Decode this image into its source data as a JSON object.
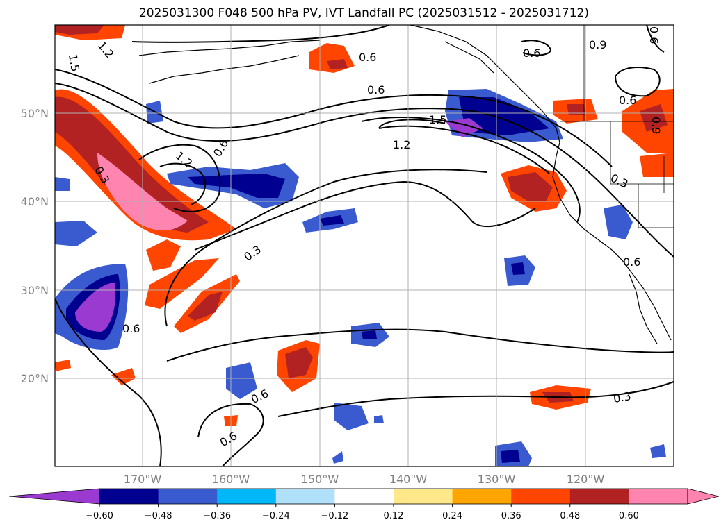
{
  "title": "2025031300 F048 500 hPa PV, IVT Landfall PC (2025031512 - 2025031712)",
  "lat_labels": [
    "50°N",
    "40°N",
    "30°N",
    "20°N"
  ],
  "lon_labels": [
    "170°W",
    "160°W",
    "150°W",
    "140°W",
    "130°W",
    "120°W"
  ],
  "contour_labels": {
    "a": "1.5",
    "b": "1.2",
    "c": "0.6",
    "d": "0.6",
    "e": "0.6",
    "f": "0.9",
    "g": "0.6",
    "h": "0.6",
    "i": "1.2",
    "j": "1.5",
    "k": "0.9",
    "l": "1.2",
    "m": "0.6",
    "n": "0.3",
    "o": "0.3",
    "p": "0.6",
    "q": "0.3",
    "r": "0.6",
    "s": "0.6",
    "t": "0.6",
    "u": "0.3"
  },
  "colorbar": {
    "colors": [
      "#9a3ad0",
      "#000090",
      "#3a5ad0",
      "#00b8f8",
      "#b0e0fa",
      "#ffffff",
      "#ffe88a",
      "#ffa500",
      "#ff4500",
      "#b22222",
      "#ff85b0",
      "#ff85b0"
    ],
    "ticks": [
      "−0.60",
      "−0.48",
      "−0.36",
      "−0.24",
      "−0.12",
      "0.12",
      "0.24",
      "0.36",
      "0.48",
      "0.60"
    ]
  }
}
